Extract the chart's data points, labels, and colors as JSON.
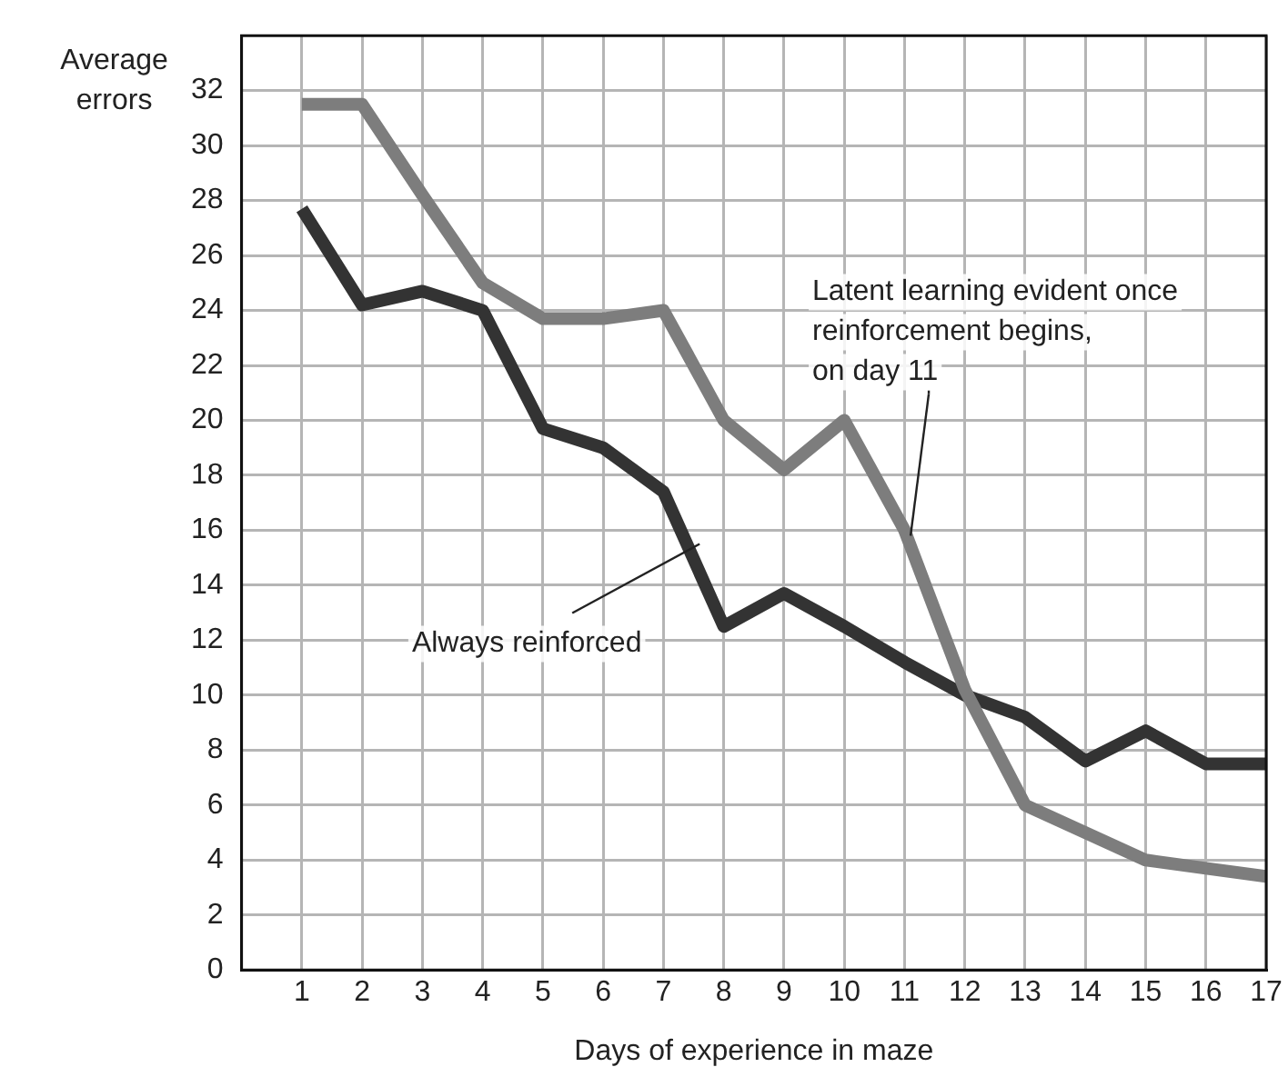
{
  "chart_data": {
    "type": "line",
    "xlabel": "Days of experience in maze",
    "ylabel": "Average errors",
    "x": [
      1,
      2,
      3,
      4,
      5,
      6,
      7,
      8,
      9,
      10,
      11,
      12,
      13,
      14,
      15,
      16,
      17
    ],
    "series": [
      {
        "color": "#7d7d7d",
        "values": [
          31.5,
          31.5,
          28.2,
          25,
          23.7,
          23.7,
          24,
          20,
          18.2,
          20,
          16,
          10.2,
          6,
          5,
          4,
          3.7,
          3.4
        ]
      },
      {
        "color": "#333333",
        "values": [
          27.7,
          24.2,
          24.7,
          24,
          19.7,
          19,
          17.4,
          12.5,
          13.7,
          12.5,
          11.2,
          10,
          9.2,
          7.6,
          8.7,
          7.5,
          7.5
        ]
      }
    ],
    "xlim": [
      0,
      17
    ],
    "xticks": [
      1,
      2,
      3,
      4,
      5,
      6,
      7,
      8,
      9,
      10,
      11,
      12,
      13,
      14,
      15,
      16,
      17
    ],
    "ylim": [
      0,
      34
    ],
    "yticks": [
      0,
      2,
      4,
      6,
      8,
      10,
      12,
      14,
      16,
      18,
      20,
      22,
      24,
      26,
      28,
      30,
      32
    ],
    "grid": true,
    "legend": false,
    "marker": "none",
    "line_style": "solid",
    "annotations": [
      {
        "text": "Always reinforced",
        "x": 7.6,
        "y": 15.5
      },
      {
        "text": "Latent learning evident once reinforcement begins, on day 11",
        "x": 11.1,
        "y": 15.8
      }
    ]
  }
}
